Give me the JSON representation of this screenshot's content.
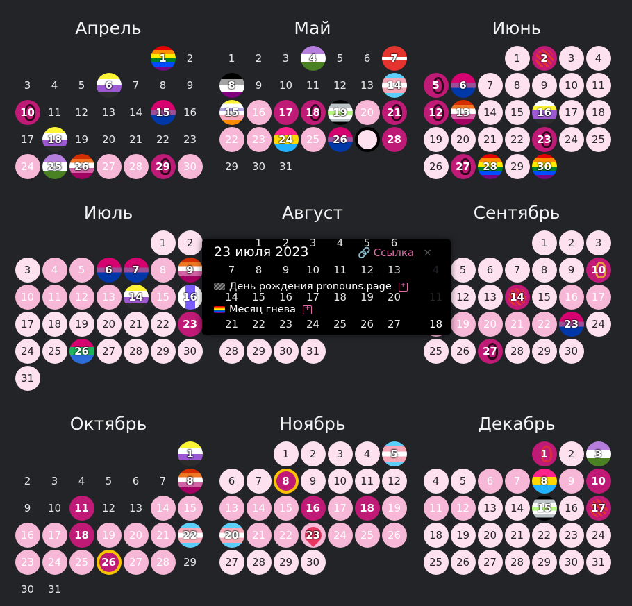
{
  "months": [
    {
      "name": "Апрель",
      "offset": 5,
      "days": 30,
      "style": {
        "1": "flag-rainbow",
        "6": "flag-nonbinary",
        "10": "ribbon-l3",
        "15": "flag-bi",
        "18": "flag-nonbinary",
        "24": "l2",
        "25": "flag-genderqueer",
        "26": "flag-lesbian",
        "27": "l2",
        "28": "l2",
        "29": "ribbon-l3",
        "30": "l2"
      }
    },
    {
      "name": "Май",
      "offset": 0,
      "days": 31,
      "style": {
        "4": "flag-genderqueer",
        "7": "flag-red",
        "8": "flag-ace",
        "14": "flag-trans",
        "15": "flag-agender",
        "16": "l2",
        "17": "l3",
        "18": "ribbon-l3",
        "19": "flag-agender2",
        "20": "l2",
        "21": "ribbon-l3",
        "22": "l2",
        "23": "l2",
        "24": "flag-pan",
        "25": "l2",
        "26": "flag-bi2",
        "27": "sel",
        "28": "l3"
      }
    },
    {
      "name": "Июнь",
      "offset": 3,
      "days": 30,
      "style": {
        "1": "l1",
        "2": "umbr",
        "3": "l1",
        "4": "l1",
        "5": "ribbon-l3",
        "6": "flag-bi",
        "7": "l1",
        "8": "l1",
        "9": "l1",
        "10": "l1",
        "11": "l1",
        "12": "ribbon-l3",
        "13": "flag-lesbian",
        "14": "l1",
        "15": "l1",
        "16": "flag-nonbinary2",
        "17": "l1",
        "18": "l1",
        "19": "l1",
        "20": "l1",
        "21": "l1",
        "22": "l1",
        "23": "ribbon-l3",
        "24": "l1",
        "25": "l1",
        "26": "l1",
        "27": "ribbon-l3",
        "28": "flag-progress",
        "29": "l1",
        "30": "flag-rainbow"
      }
    },
    {
      "name": "Июль",
      "offset": 5,
      "days": 31,
      "style": {
        "1": "l1",
        "2": "l1",
        "3": "l1",
        "4": "l2",
        "5": "l2",
        "6": "flag-bi",
        "7": "flag-bi2",
        "8": "l2",
        "9": "flag-lesbian",
        "10": "l2",
        "11": "l2",
        "12": "l2",
        "13": "l2",
        "14": "flag-nonbinary",
        "15": "l2",
        "16": "flag-intersex",
        "17": "l1",
        "18": "l1",
        "19": "l1",
        "20": "l1",
        "21": "l1",
        "22": "l1",
        "23": "l3",
        "24": "l1",
        "25": "l1",
        "26": "flag-trans2",
        "27": "l1",
        "28": "l1",
        "29": "l1",
        "30": "l1",
        "31": "l1"
      }
    },
    {
      "name": "Август",
      "offset": 1,
      "days": 31,
      "style": {
        "28": "l1",
        "29": "l1",
        "30": "l1",
        "31": "l1"
      }
    },
    {
      "name": "Сентябрь",
      "offset": 4,
      "days": 30,
      "style": {
        "1": "l1",
        "2": "l1",
        "3": "l1",
        "4": "l1",
        "5": "l1",
        "6": "l1",
        "7": "l1",
        "8": "l1",
        "9": "l1",
        "10": "ribbon-gold",
        "11": "l1",
        "12": "l1",
        "13": "l1",
        "14": "umbr",
        "15": "l1",
        "16": "l2",
        "17": "l2",
        "18": "l2",
        "19": "l2",
        "20": "l2",
        "21": "l2",
        "22": "l2",
        "23": "flag-bi",
        "24": "l1",
        "25": "l1",
        "26": "l1",
        "27": "ribbon-l3",
        "28": "l1",
        "29": "l1",
        "30": "l1"
      }
    },
    {
      "name": "Октябрь",
      "offset": 6,
      "days": 31,
      "style": {
        "1": "flag-nonbinary",
        "8": "flag-lesbian",
        "11": "l3",
        "14": "l2",
        "15": "l2",
        "16": "l2",
        "17": "l2",
        "18": "l3",
        "19": "l2",
        "20": "l2",
        "21": "l2",
        "22": "flag-trans",
        "23": "l2",
        "24": "l2",
        "25": "l2",
        "26": "ring-gold",
        "27": "l2",
        "28": "l2"
      }
    },
    {
      "name": "Ноябрь",
      "offset": 2,
      "days": 30,
      "style": {
        "1": "l1",
        "2": "l1",
        "3": "l1",
        "4": "l1",
        "5": "flag-trans",
        "6": "l1",
        "7": "l1",
        "8": "ring",
        "9": "l1",
        "10": "l1",
        "11": "l1",
        "12": "l1",
        "13": "l2",
        "14": "l2",
        "15": "l2",
        "16": "l3",
        "17": "l2",
        "18": "l3",
        "19": "l2",
        "20": "flag-trans",
        "21": "l2",
        "22": "l2",
        "23": "heart",
        "24": "l2",
        "25": "l2",
        "26": "l2",
        "27": "l1",
        "28": "l1",
        "29": "l1",
        "30": "l1"
      }
    },
    {
      "name": "Декабрь",
      "offset": 4,
      "days": 31,
      "style": {
        "1": "ribbon-red",
        "2": "l1",
        "3": "flag-genderqueer",
        "4": "l1",
        "5": "l1",
        "6": "l2",
        "7": "l2",
        "8": "flag-pan",
        "9": "l2",
        "10": "l3",
        "11": "l2",
        "12": "l2",
        "13": "l1",
        "14": "l1",
        "15": "flag-agender2",
        "16": "l1",
        "17": "umbr",
        "18": "l1",
        "19": "l1",
        "20": "l1",
        "21": "l1",
        "22": "l1",
        "23": "l1",
        "24": "l1",
        "25": "l1",
        "26": "l1",
        "27": "l1",
        "28": "l1",
        "29": "l1",
        "30": "l1",
        "31": "l1"
      }
    }
  ],
  "august_hidden_top": true,
  "popup": {
    "title": "23 июля 2023",
    "link_label": "Ссылка",
    "close_glyph": "×",
    "events": [
      {
        "label": "День рождения pronouns.page",
        "icon": "pronouns-logo-icon"
      },
      {
        "label": "Месяц гнева",
        "icon": "rainbow-flag-icon"
      }
    ]
  },
  "colors": {
    "background": "#232428",
    "light": "#fde1ef",
    "medium": "#f7b7d7",
    "dark": "#be1a76",
    "accent": "#e36ca8"
  }
}
